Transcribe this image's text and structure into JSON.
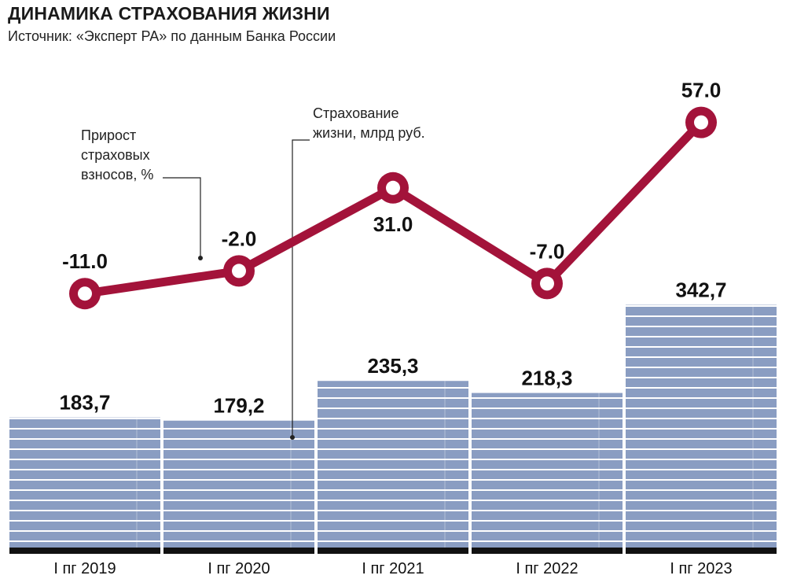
{
  "header": {
    "title": "ДИНАМИКА СТРАХОВАНИЯ ЖИЗНИ",
    "source": "Источник: «Эксперт РА» по данным Банка России"
  },
  "annotations": {
    "growth": [
      "Прирост",
      "страховых",
      "взносов, %"
    ],
    "premiums": [
      "Страхование",
      "жизни, млрд руб."
    ]
  },
  "colors": {
    "bar": "#8a9dc2",
    "bar_stripe": "#ffffff",
    "line": "#a3133a",
    "marker_inner": "#ffffff",
    "baseline": "#111111"
  },
  "chart_data": {
    "type": "bar",
    "categories": [
      "I пг 2019",
      "I пг 2020",
      "I пг 2021",
      "I пг 2022",
      "I пг 2023"
    ],
    "series": [
      {
        "type": "bar",
        "values": [
          183.7,
          179.2,
          235.3,
          218.3,
          342.7
        ],
        "labels": [
          "183,7",
          "179,2",
          "235,3",
          "218,3",
          "342,7"
        ]
      },
      {
        "type": "line",
        "values": [
          -11.0,
          -2.0,
          31.0,
          -7.0,
          57.0
        ],
        "labels": [
          "-11.0",
          "-2.0",
          "31.0",
          "-7.0",
          "57.0"
        ]
      }
    ]
  }
}
